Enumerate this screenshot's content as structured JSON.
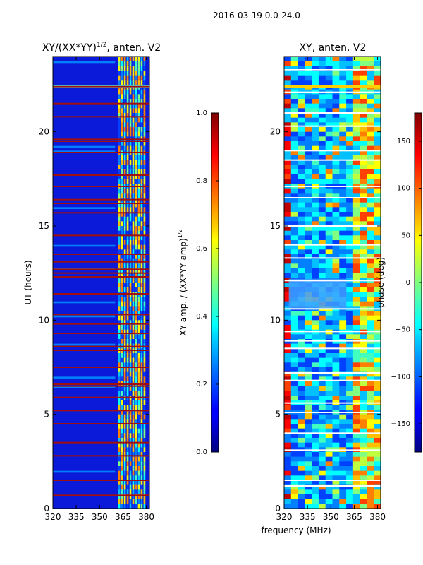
{
  "figure_title": "2016-03-19 0.0-24.0",
  "shared_xlabel": "frequency (MHz)",
  "chart_data": [
    {
      "type": "heatmap",
      "title_main": "XY/(XX*YY)",
      "title_sup": "1/2",
      "title_tail": ", anten. V2",
      "ylabel": "UT (hours)",
      "xlim": [
        320,
        382
      ],
      "ylim": [
        0,
        24
      ],
      "xticks": [
        320,
        335,
        350,
        365,
        380
      ],
      "yticks": [
        0,
        5,
        10,
        15,
        20
      ],
      "colorbar": {
        "label_main": "XY amp. / (XX*YY amp)",
        "label_sup": "1/2",
        "range": [
          0.0,
          1.0
        ],
        "ticks": [
          "0.0",
          "0.2",
          "0.4",
          "0.6",
          "0.8",
          "1.0"
        ],
        "tick_values": [
          0.0,
          0.2,
          0.4,
          0.6,
          0.8,
          1.0
        ],
        "colormap": "jet"
      },
      "flagged_hours": [
        0.7,
        1.5,
        2.8,
        3.5,
        4.5,
        5.2,
        5.9,
        6.5,
        6.6,
        7.5,
        8.4,
        8.6,
        9.3,
        9.8,
        10.3,
        11.4,
        12.3,
        12.5,
        12.7,
        13.1,
        13.5,
        14.5,
        15.7,
        16.2,
        16.4,
        17.1,
        17.7,
        18.9,
        19.5,
        19.6,
        20.8,
        21.5,
        22.4
      ]
    },
    {
      "type": "heatmap",
      "title_main": "XY, anten. V2",
      "xlim": [
        320,
        382
      ],
      "ylim": [
        0,
        24
      ],
      "xticks": [
        320,
        335,
        350,
        365,
        380
      ],
      "yticks": [
        0,
        5,
        10,
        15,
        20
      ],
      "colorbar": {
        "label": "phase (deg)",
        "range": [
          -180,
          180
        ],
        "ticks": [
          "−150",
          "−100",
          "−50",
          "0",
          "50",
          "100",
          "150"
        ],
        "tick_values": [
          -150,
          -100,
          -50,
          0,
          50,
          100,
          150
        ],
        "colormap": "jet"
      },
      "flagged_hours": [
        1.2,
        1.5,
        3.1,
        4.0,
        5.1,
        5.6,
        6.8,
        7.2,
        8.5,
        8.9,
        9.4,
        10.6,
        12.1,
        13.3,
        14.0,
        15.0,
        16.5,
        17.1,
        18.5,
        19.0,
        20.3,
        21.0,
        22.1,
        23.3
      ]
    }
  ]
}
